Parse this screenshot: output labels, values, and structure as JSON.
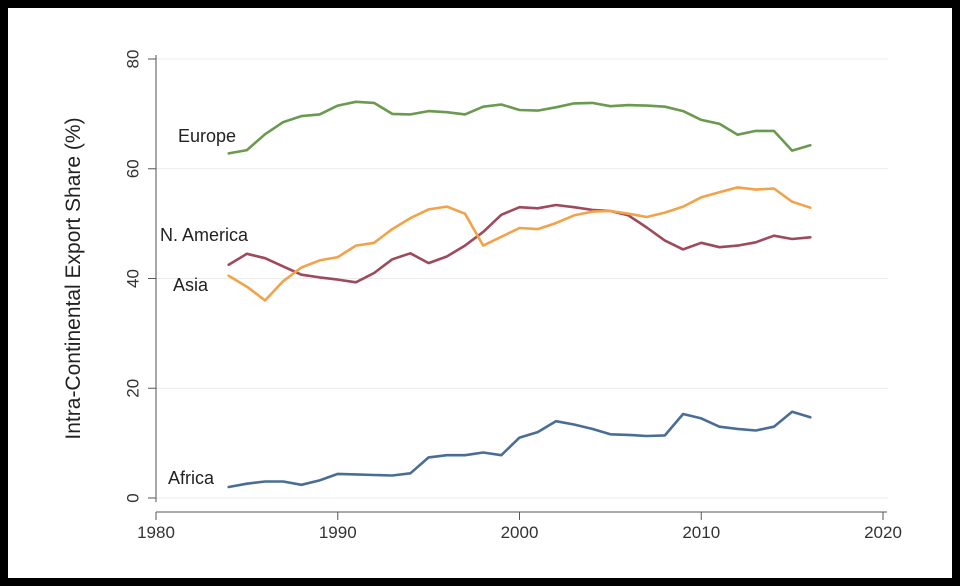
{
  "chart_data": {
    "type": "line",
    "title": "",
    "xlabel": "",
    "ylabel": "Intra-Continental Export Share (%)",
    "xlim": [
      1980,
      2020
    ],
    "ylim": [
      0,
      80
    ],
    "xticks": [
      "1980",
      "1990",
      "2000",
      "2010",
      "2020"
    ],
    "yticks": [
      "0",
      "20",
      "40",
      "60",
      "80"
    ],
    "grid": true,
    "legend": "inline-labels",
    "x": [
      1984,
      1985,
      1986,
      1987,
      1988,
      1989,
      1990,
      1991,
      1992,
      1993,
      1994,
      1995,
      1996,
      1997,
      1998,
      1999,
      2000,
      2001,
      2002,
      2003,
      2004,
      2005,
      2006,
      2007,
      2008,
      2009,
      2010,
      2011,
      2012,
      2013,
      2014,
      2015,
      2016
    ],
    "series": [
      {
        "name": "Europe",
        "color": "#6a9a4f",
        "values": [
          62.8,
          63.4,
          66.3,
          68.5,
          69.6,
          69.9,
          71.5,
          72.2,
          72.0,
          70.0,
          69.9,
          70.5,
          70.3,
          69.9,
          71.3,
          71.7,
          70.7,
          70.6,
          71.2,
          71.9,
          72.0,
          71.4,
          71.6,
          71.5,
          71.3,
          70.5,
          68.9,
          68.2,
          66.2,
          66.9,
          66.9,
          63.3,
          64.3
        ]
      },
      {
        "name": "N. America",
        "color": "#9e4a5b",
        "values": [
          42.5,
          44.5,
          43.7,
          42.2,
          40.7,
          40.2,
          39.8,
          39.3,
          41.0,
          43.5,
          44.6,
          42.8,
          44.0,
          46.0,
          48.5,
          51.6,
          53.0,
          52.8,
          53.4,
          53.0,
          52.5,
          52.3,
          51.5,
          49.3,
          46.9,
          45.3,
          46.5,
          45.7,
          46.0,
          46.6,
          47.8,
          47.2,
          47.5
        ]
      },
      {
        "name": "Asia",
        "color": "#f2a34a",
        "values": [
          40.5,
          38.5,
          36.0,
          39.5,
          42.0,
          43.3,
          43.9,
          46.0,
          46.5,
          49.0,
          51.0,
          52.6,
          53.1,
          51.8,
          46.0,
          47.6,
          49.2,
          49.0,
          50.1,
          51.5,
          52.2,
          52.3,
          51.8,
          51.2,
          52.0,
          53.1,
          54.8,
          55.7,
          56.6,
          56.2,
          56.4,
          54.0,
          52.9
        ]
      },
      {
        "name": "Africa",
        "color": "#4a6d96",
        "values": [
          2.0,
          2.6,
          3.0,
          3.0,
          2.4,
          3.2,
          4.4,
          4.3,
          4.2,
          4.1,
          4.5,
          7.4,
          7.8,
          7.8,
          8.3,
          7.8,
          11.0,
          12.0,
          14.0,
          13.4,
          12.6,
          11.6,
          11.5,
          11.3,
          11.4,
          15.3,
          14.5,
          13.0,
          12.6,
          12.3,
          13.0,
          15.7,
          14.7
        ]
      }
    ],
    "labels": [
      {
        "text": "Europe",
        "series": "Europe"
      },
      {
        "text": "N. America",
        "series": "N. America"
      },
      {
        "text": "Asia",
        "series": "Asia"
      },
      {
        "text": "Africa",
        "series": "Africa"
      }
    ]
  }
}
